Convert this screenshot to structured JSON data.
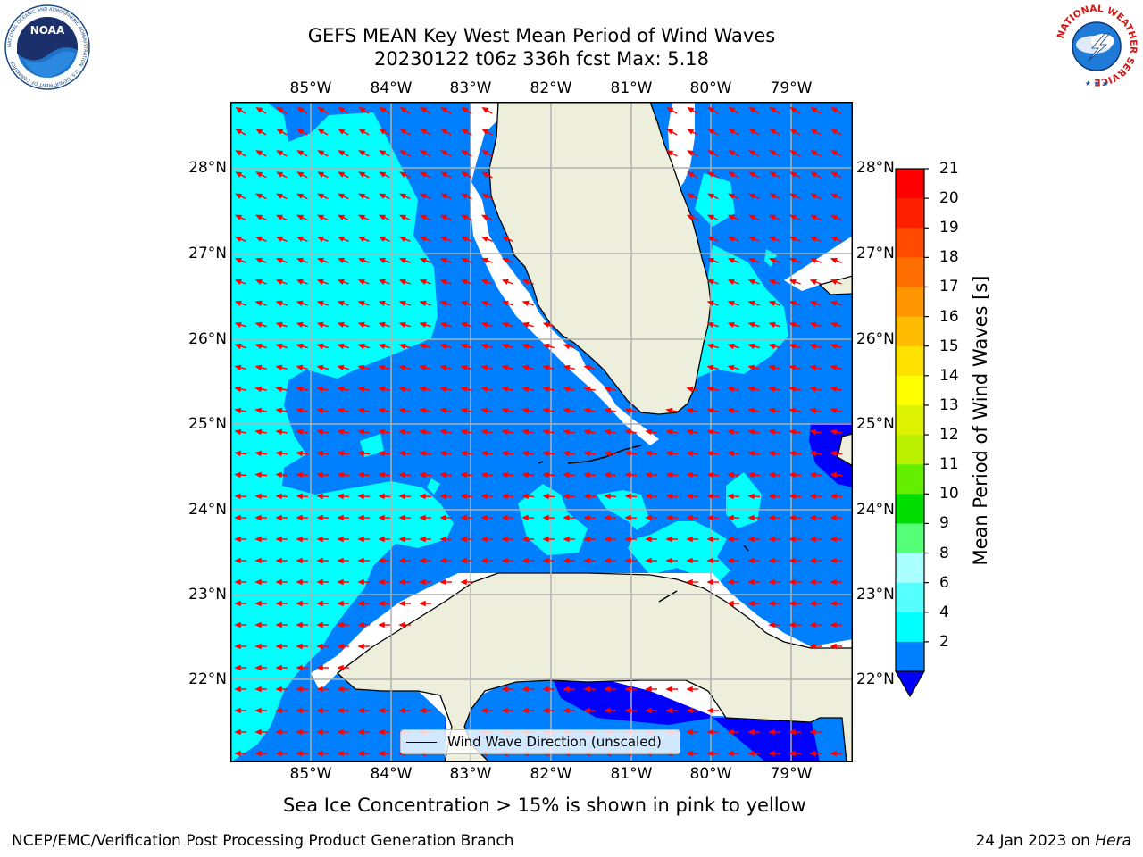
{
  "title": {
    "line1": "GEFS MEAN Key West Mean Period of Wind Waves",
    "line2": "20230122 t06z 336h fcst   Max: 5.18"
  },
  "logos": {
    "left": {
      "text": "NOAA",
      "ring_text": "NATIONAL OCEANIC AND ATMOSPHERIC ADMINISTRATION · U.S. DEPARTMENT OF COMMERCE"
    },
    "right": {
      "ring_text": "NATIONAL WEATHER SERVICE"
    }
  },
  "map": {
    "lon_ticks": [
      "85°W",
      "84°W",
      "83°W",
      "82°W",
      "81°W",
      "80°W",
      "79°W"
    ],
    "lat_ticks": [
      "28°N",
      "27°N",
      "26°N",
      "25°N",
      "24°N",
      "23°N",
      "22°N"
    ],
    "legend_label": "Wind Wave Direction (unscaled)",
    "colors": {
      "band_2_4": "#0080ff",
      "band_4_6": "#00ffff",
      "below_2": "#0000ff",
      "land": "#eeeedd",
      "arrow": "#ff0000",
      "grid": "#b0b0b0"
    }
  },
  "colorbar": {
    "title": "Mean Period of Wind Waves [s]",
    "ticks": [
      "21",
      "20",
      "19",
      "18",
      "17",
      "16",
      "15",
      "14",
      "13",
      "12",
      "11",
      "10",
      "9",
      "8",
      "6",
      "4",
      "2"
    ],
    "colors": [
      "#ff0000",
      "#ff2000",
      "#ff4a00",
      "#ff6e00",
      "#ff9500",
      "#ffbb00",
      "#ffe100",
      "#ffff00",
      "#ddf200",
      "#bbf000",
      "#66ee00",
      "#00dd00",
      "#55ff77",
      "#aaffff",
      "#55ffff",
      "#00ffff",
      "#0080ff"
    ],
    "extend_color": "#0000ff"
  },
  "note": "Sea Ice Concentration > 15% is shown in pink to yellow",
  "footer": {
    "left": "NCEP/EMC/Verification Post Processing Product Generation Branch",
    "date": "24 Jan 2023 on ",
    "host": "Hera"
  }
}
